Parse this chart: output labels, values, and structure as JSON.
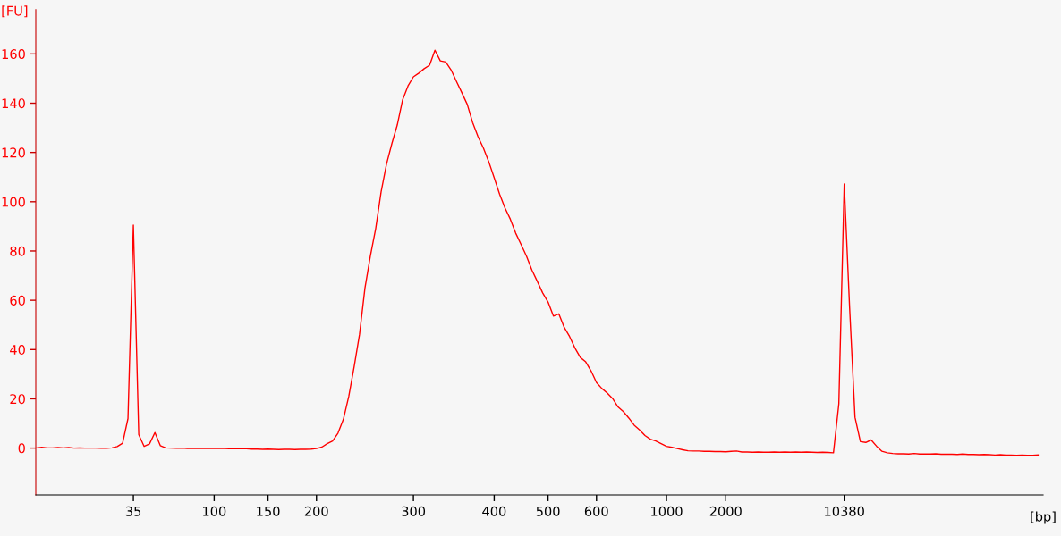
{
  "chart_data": {
    "type": "line",
    "xlabel": "[bp]",
    "ylabel": "[FU]",
    "categories": [
      null,
      null,
      null,
      null,
      null,
      null,
      null,
      null,
      null,
      null,
      null,
      null,
      null,
      null,
      null,
      null,
      null,
      null,
      "35",
      null,
      null,
      null,
      null,
      null,
      null,
      null,
      null,
      null,
      null,
      null,
      null,
      null,
      null,
      "100",
      null,
      null,
      null,
      null,
      null,
      null,
      null,
      null,
      null,
      "150",
      null,
      null,
      null,
      null,
      null,
      null,
      null,
      null,
      "200",
      null,
      null,
      null,
      null,
      null,
      null,
      null,
      null,
      null,
      null,
      null,
      null,
      null,
      null,
      null,
      null,
      null,
      "300",
      null,
      null,
      null,
      null,
      null,
      null,
      null,
      null,
      null,
      null,
      null,
      null,
      null,
      null,
      "400",
      null,
      null,
      null,
      null,
      null,
      null,
      null,
      null,
      null,
      "500",
      null,
      null,
      null,
      null,
      null,
      null,
      null,
      null,
      "600",
      null,
      null,
      null,
      null,
      null,
      null,
      null,
      null,
      null,
      null,
      null,
      null,
      "1000",
      null,
      null,
      null,
      null,
      null,
      null,
      null,
      null,
      null,
      null,
      "2000",
      null,
      null,
      null,
      null,
      null,
      null,
      null,
      null,
      null,
      null,
      null,
      null,
      null,
      null,
      null,
      null,
      null,
      null,
      null,
      null,
      null,
      "10380",
      null,
      null,
      null,
      null,
      null,
      null,
      null,
      null,
      null,
      null,
      null,
      null,
      null,
      null,
      null,
      null,
      null,
      null,
      null,
      null,
      null,
      null,
      null,
      null,
      null,
      null,
      null,
      null,
      null,
      null,
      null,
      null,
      null,
      null,
      null,
      null
    ],
    "series": [
      {
        "color": "#ff0000",
        "values": [
          0.1,
          0.3,
          0.1,
          0.1,
          0.2,
          0.1,
          0.2,
          0.0,
          0.1,
          0.0,
          0.0,
          0.0,
          -0.1,
          -0.1,
          0.1,
          0.6,
          2.0,
          12.0,
          90.5,
          5.5,
          0.7,
          1.7,
          6.3,
          1.0,
          0.1,
          0.0,
          -0.1,
          0.0,
          -0.2,
          -0.1,
          -0.2,
          -0.1,
          -0.2,
          -0.2,
          -0.1,
          -0.2,
          -0.3,
          -0.3,
          -0.2,
          -0.3,
          -0.4,
          -0.4,
          -0.5,
          -0.4,
          -0.5,
          -0.6,
          -0.5,
          -0.5,
          -0.6,
          -0.5,
          -0.5,
          -0.4,
          -0.2,
          0.4,
          1.8,
          2.9,
          6.1,
          11.7,
          21.0,
          33.1,
          46.2,
          64.9,
          77.9,
          89.1,
          104.0,
          115.2,
          123.6,
          131.1,
          141.4,
          147.0,
          150.7,
          152.2,
          154.0,
          155.4,
          161.5,
          157.2,
          156.7,
          153.5,
          148.8,
          144.2,
          139.5,
          132.1,
          126.4,
          121.8,
          116.2,
          109.7,
          103.1,
          97.5,
          92.9,
          87.2,
          82.6,
          77.9,
          72.3,
          67.7,
          63.0,
          59.3,
          53.6,
          54.5,
          49.0,
          45.3,
          40.6,
          36.8,
          35.0,
          31.3,
          26.6,
          24.2,
          22.3,
          20.1,
          16.7,
          14.8,
          12.2,
          9.3,
          7.4,
          5.1,
          3.6,
          2.9,
          1.8,
          0.7,
          0.3,
          -0.2,
          -0.7,
          -1.1,
          -1.2,
          -1.2,
          -1.3,
          -1.3,
          -1.4,
          -1.4,
          -1.5,
          -1.3,
          -1.2,
          -1.6,
          -1.6,
          -1.7,
          -1.6,
          -1.7,
          -1.7,
          -1.6,
          -1.7,
          -1.6,
          -1.7,
          -1.6,
          -1.7,
          -1.6,
          -1.7,
          -1.8,
          -1.7,
          -1.8,
          -1.9,
          18.0,
          107.2,
          57.0,
          12.5,
          2.6,
          2.3,
          3.3,
          0.8,
          -1.3,
          -1.9,
          -2.2,
          -2.3,
          -2.3,
          -2.4,
          -2.2,
          -2.4,
          -2.4,
          -2.4,
          -2.3,
          -2.5,
          -2.5,
          -2.5,
          -2.6,
          -2.4,
          -2.6,
          -2.6,
          -2.7,
          -2.6,
          -2.7,
          -2.8,
          -2.7,
          -2.8,
          -2.8,
          -2.9,
          -2.8,
          -2.9,
          -2.9,
          -2.8
        ]
      }
    ],
    "ylim": [
      -19,
      178
    ],
    "yticks": [
      0,
      20,
      40,
      60,
      80,
      100,
      120,
      140,
      160
    ]
  }
}
